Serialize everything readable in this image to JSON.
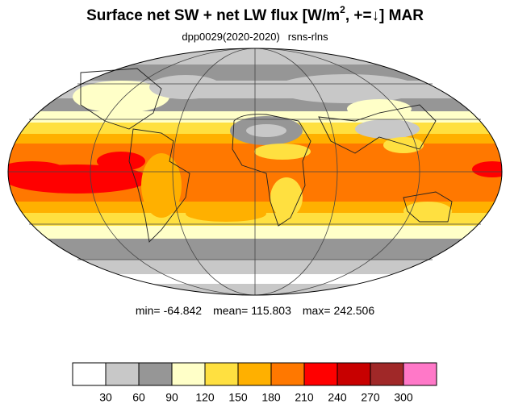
{
  "map": {
    "title": {
      "text": "Surface net SW + net LW flux [W/m",
      "sup": "2",
      "rest": ", +=↓]  MAR"
    },
    "subtitle": {
      "experiment": "dpp0029(2020-2020)",
      "variable": "rsns-rlns"
    },
    "stats": [
      {
        "label": "min=",
        "value": -64.842
      },
      {
        "label": "mean=",
        "value": 115.803
      },
      {
        "label": "max=",
        "value": 242.506
      }
    ],
    "colorbar": {
      "levels": [
        30,
        60,
        90,
        120,
        150,
        180,
        210,
        240,
        270,
        300
      ],
      "colors": [
        "#ffffff",
        "#c8c8c8",
        "#969696",
        "#ffffc8",
        "#ffe040",
        "#ffb000",
        "#ff7800",
        "#ff0000",
        "#c80000",
        "#a02828",
        "#ff78c8"
      ]
    }
  }
}
